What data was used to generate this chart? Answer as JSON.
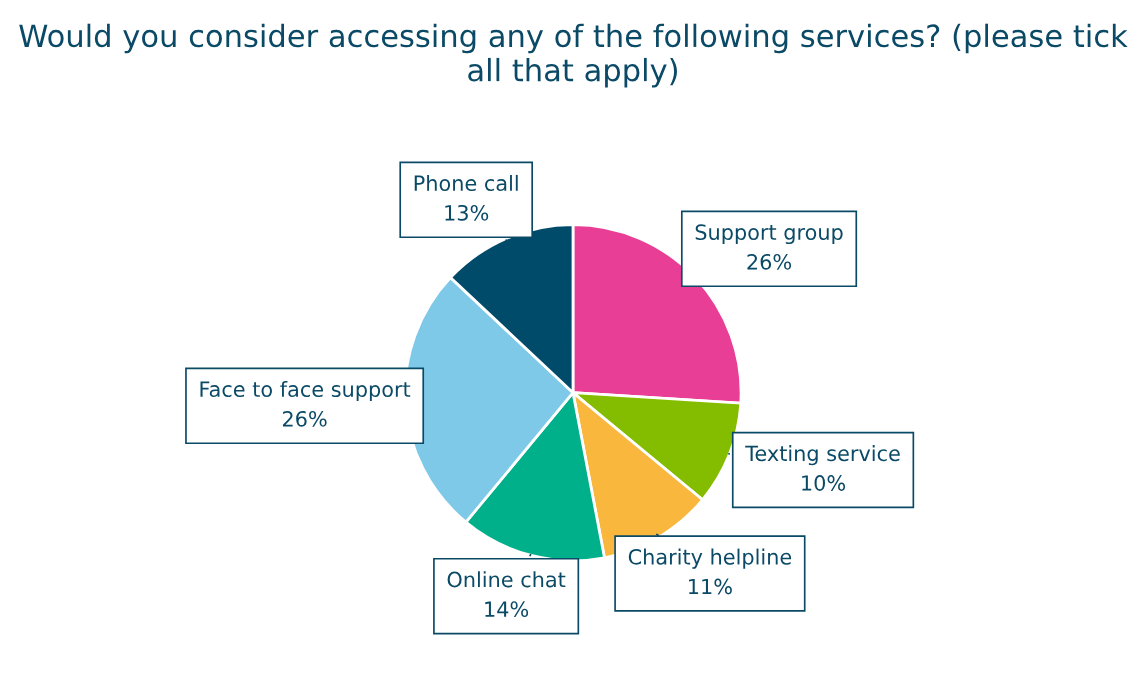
{
  "chart_data": {
    "type": "pie",
    "title": "Would you consider accessing any of the following services? (please tick all that apply)",
    "categories": [
      "Support group",
      "Texting service",
      "Charity helpline",
      "Online chat",
      "Face to face support",
      "Phone call"
    ],
    "values": [
      26,
      10,
      11,
      14,
      26,
      13
    ],
    "colors": [
      "#e83e96",
      "#84bd00",
      "#f9b73e",
      "#00b08a",
      "#7ec8e8",
      "#004a6a"
    ],
    "value_labels": [
      "26%",
      "10%",
      "11%",
      "14%",
      "26%",
      "13%"
    ]
  }
}
